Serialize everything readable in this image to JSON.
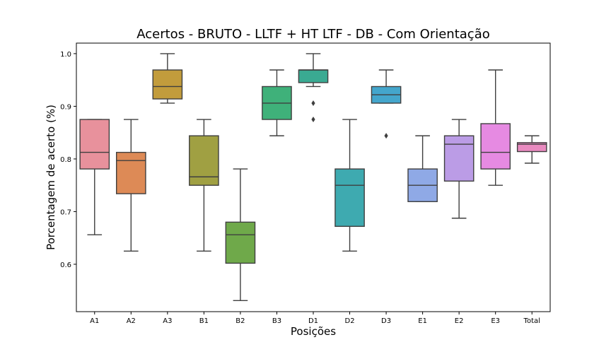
{
  "chart_data": {
    "type": "box",
    "title": "Acertos - BRUTO - LLTF + HT LTF - DB - Com Orientação",
    "xlabel": "Posições",
    "ylabel": "Porcentagem de acerto (%)",
    "ylim": [
      0.51,
      1.02
    ],
    "yticks": [
      0.6,
      0.7,
      0.8,
      0.9,
      1.0
    ],
    "ytick_labels": [
      "0.6",
      "0.7",
      "0.8",
      "0.9",
      "1.0"
    ],
    "grid": false,
    "categories": [
      "A1",
      "A2",
      "A3",
      "B1",
      "B2",
      "B3",
      "D1",
      "D2",
      "D3",
      "E1",
      "E2",
      "E3",
      "Total"
    ],
    "boxes": [
      {
        "label": "A1",
        "whislo": 0.656,
        "q1": 0.781,
        "med": 0.8125,
        "q3": 0.875,
        "whishi": 0.875,
        "fliers": [],
        "color": "#e8919c"
      },
      {
        "label": "A2",
        "whislo": 0.625,
        "q1": 0.734,
        "med": 0.797,
        "q3": 0.8125,
        "whishi": 0.875,
        "fliers": [],
        "color": "#dd8a56"
      },
      {
        "label": "A3",
        "whislo": 0.906,
        "q1": 0.914,
        "med": 0.9375,
        "q3": 0.969,
        "whishi": 1.0,
        "fliers": [],
        "color": "#c29c3c"
      },
      {
        "label": "B1",
        "whislo": 0.625,
        "q1": 0.75,
        "med": 0.766,
        "q3": 0.844,
        "whishi": 0.875,
        "fliers": [],
        "color": "#a0a042"
      },
      {
        "label": "B2",
        "whislo": 0.531,
        "q1": 0.602,
        "med": 0.656,
        "q3": 0.68,
        "whishi": 0.781,
        "fliers": [],
        "color": "#6fa94a"
      },
      {
        "label": "B3",
        "whislo": 0.844,
        "q1": 0.875,
        "med": 0.906,
        "q3": 0.9375,
        "whishi": 0.969,
        "fliers": [],
        "color": "#3fb17a"
      },
      {
        "label": "D1",
        "whislo": 0.9375,
        "q1": 0.945,
        "med": 0.969,
        "q3": 0.969,
        "whishi": 1.0,
        "fliers": [
          0.906,
          0.875
        ],
        "color": "#3aaa92"
      },
      {
        "label": "D2",
        "whislo": 0.625,
        "q1": 0.672,
        "med": 0.75,
        "q3": 0.781,
        "whishi": 0.875,
        "fliers": [],
        "color": "#3eaab0"
      },
      {
        "label": "D3",
        "whislo": 0.906,
        "q1": 0.906,
        "med": 0.922,
        "q3": 0.9375,
        "whishi": 0.969,
        "fliers": [
          0.844
        ],
        "color": "#44a6cc"
      },
      {
        "label": "E1",
        "whislo": 0.719,
        "q1": 0.719,
        "med": 0.75,
        "q3": 0.781,
        "whishi": 0.844,
        "fliers": [],
        "color": "#8fa9e6"
      },
      {
        "label": "E2",
        "whislo": 0.6875,
        "q1": 0.758,
        "med": 0.828,
        "q3": 0.844,
        "whishi": 0.875,
        "fliers": [],
        "color": "#bb9ce6"
      },
      {
        "label": "E3",
        "whislo": 0.75,
        "q1": 0.781,
        "med": 0.8125,
        "q3": 0.867,
        "whishi": 0.969,
        "fliers": [],
        "color": "#e68ae2"
      },
      {
        "label": "Total",
        "whislo": 0.792,
        "q1": 0.814,
        "med": 0.828,
        "q3": 0.831,
        "whishi": 0.844,
        "fliers": [],
        "color": "#e98ac0"
      }
    ]
  }
}
